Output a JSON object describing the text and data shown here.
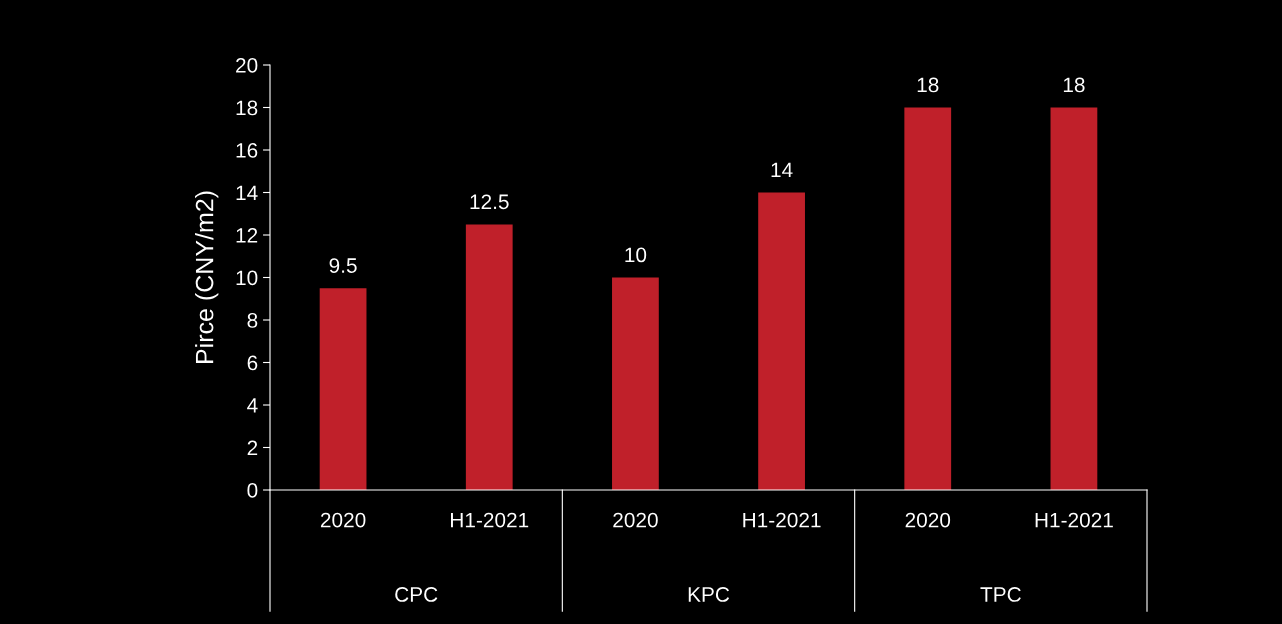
{
  "chart_data": {
    "type": "bar",
    "ylabel": "Pirce (CNY/m2)",
    "categories": [
      "2020",
      "H1-2021",
      "2020",
      "H1-2021",
      "2020",
      "H1-2021"
    ],
    "values": [
      9.5,
      12.5,
      10,
      14,
      18,
      18
    ],
    "color": "#c0202a",
    "annotations": [
      "CPC",
      "KPC",
      "TPC"
    ],
    "ylim": [
      0,
      20
    ],
    "yticks": [
      0,
      2,
      4,
      6,
      8,
      10,
      12,
      14,
      16,
      18,
      20
    ],
    "data_labels": true,
    "grid": false,
    "legend": false
  }
}
